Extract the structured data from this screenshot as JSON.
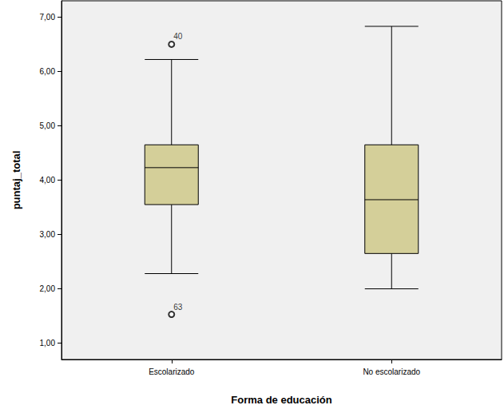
{
  "chart_data": {
    "type": "boxplot",
    "x_label": "Forma de educación",
    "y_label": "puntaj_total",
    "categories": [
      "Escolarizado",
      "No escolarizado"
    ],
    "boxes": [
      {
        "min": 2.28,
        "q1": 3.55,
        "median": 4.23,
        "q3": 4.65,
        "max": 6.22
      },
      {
        "min": 2.0,
        "q1": 2.65,
        "median": 3.64,
        "q3": 4.65,
        "max": 6.83
      }
    ],
    "outliers": [
      {
        "category": "Escolarizado",
        "value": 6.5,
        "label": "40"
      },
      {
        "category": "Escolarizado",
        "value": 1.53,
        "label": "63"
      }
    ],
    "color": "#d4cf99",
    "ylim": [
      0.7,
      7.3
    ],
    "yticks": [
      {
        "value": 1,
        "label": "1,00"
      },
      {
        "value": 2,
        "label": "2,00"
      },
      {
        "value": 3,
        "label": "3,00"
      },
      {
        "value": 4,
        "label": "4,00"
      },
      {
        "value": 5,
        "label": "5,00"
      },
      {
        "value": 6,
        "label": "6,00"
      },
      {
        "value": 7,
        "label": "7,00"
      }
    ],
    "grid": false
  }
}
